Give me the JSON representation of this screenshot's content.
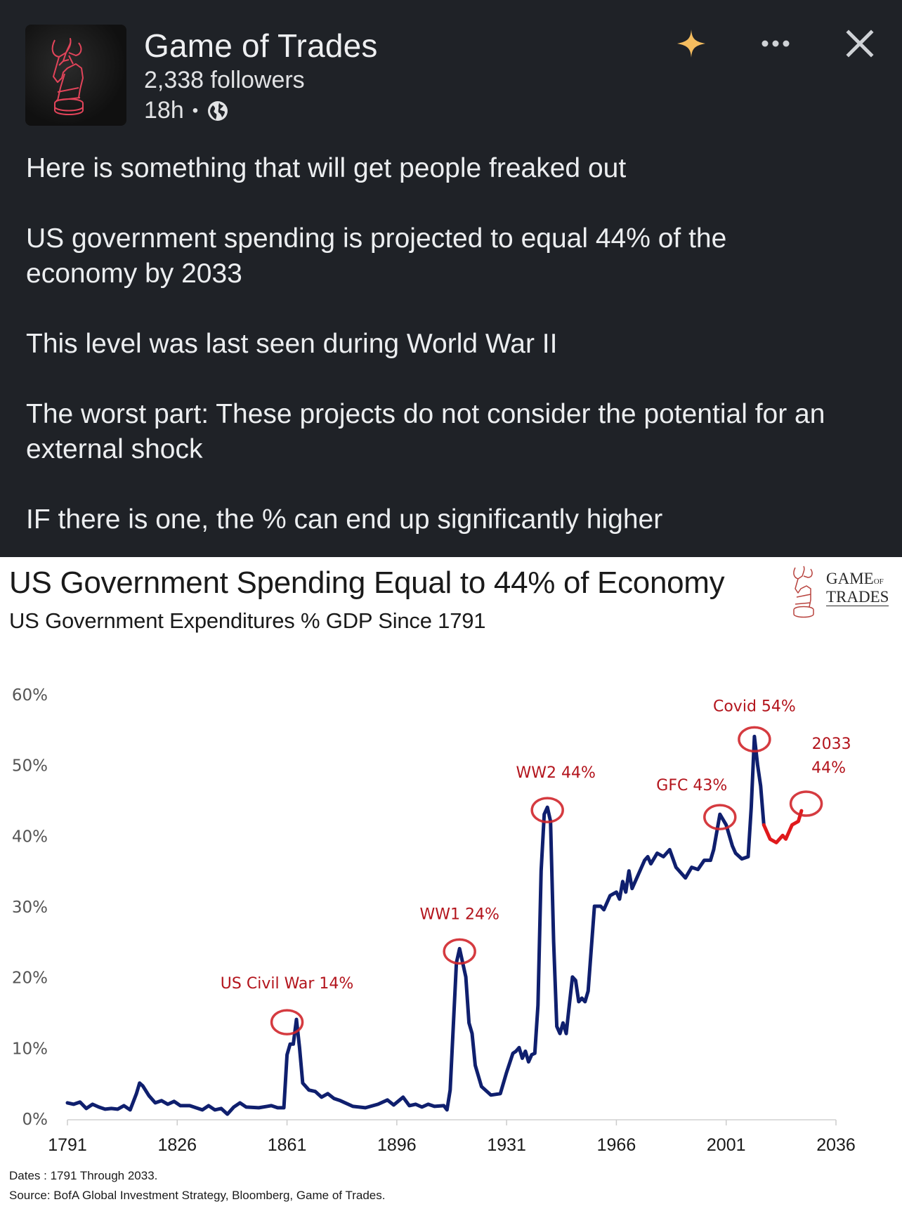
{
  "post": {
    "author": {
      "name": "Game of Trades",
      "followers": "2,338 followers",
      "time": "18h",
      "separator": "•",
      "visibility_icon": "globe-icon"
    },
    "header_actions": {
      "sparkle_icon": "sparkle-icon",
      "more_icon": "more-horizontal-icon",
      "close_icon": "close-icon",
      "sparkle_color": "#f5bd5f"
    },
    "body": [
      "Here is something that will get people freaked out",
      "US government spending is projected to equal 44% of the economy by 2033",
      "This level was last seen during World War II",
      "The worst part: These projects do not consider the potential for an external shock",
      "IF there is one, the % can end up significantly higher"
    ]
  },
  "chart_card": {
    "title": "US Government Spending Equal to 44% of Economy",
    "subtitle": "US Government Expenditures % GDP Since 1791",
    "brand": {
      "line1": "GAME",
      "line1_small": "OF",
      "line2": "TRADES"
    },
    "footnotes": [
      "Dates : 1791 Through 2033.",
      "Source: BofA Global Investment Strategy, Bloomberg, Game of Trades."
    ]
  },
  "chart_data": {
    "type": "line",
    "title": "US Government Spending Equal to 44% of Economy",
    "subtitle": "US Government Expenditures % GDP Since 1791",
    "xlabel": "",
    "ylabel": "",
    "xlim": [
      1791,
      2036
    ],
    "ylim": [
      0,
      60
    ],
    "x_ticks": [
      "1791",
      "1826",
      "1861",
      "1896",
      "1931",
      "1966",
      "2001",
      "2036"
    ],
    "y_ticks": [
      "0%",
      "10%",
      "20%",
      "30%",
      "40%",
      "50%",
      "60%"
    ],
    "grid": false,
    "legend": null,
    "colors": {
      "historical": "#0f1f6e",
      "projection": "#e0191c",
      "annotation": "#b3141c"
    },
    "series": [
      {
        "name": "Historical",
        "points": [
          [
            1791,
            2.2
          ],
          [
            1793,
            2.0
          ],
          [
            1795,
            2.3
          ],
          [
            1797,
            1.4
          ],
          [
            1799,
            2.0
          ],
          [
            1801,
            1.6
          ],
          [
            1803,
            1.3
          ],
          [
            1805,
            1.4
          ],
          [
            1807,
            1.3
          ],
          [
            1809,
            1.8
          ],
          [
            1811,
            1.2
          ],
          [
            1813,
            3.5
          ],
          [
            1814,
            5.0
          ],
          [
            1815,
            4.6
          ],
          [
            1817,
            3.2
          ],
          [
            1819,
            2.2
          ],
          [
            1821,
            2.5
          ],
          [
            1823,
            2.0
          ],
          [
            1825,
            2.4
          ],
          [
            1827,
            1.8
          ],
          [
            1830,
            1.8
          ],
          [
            1834,
            1.2
          ],
          [
            1836,
            1.8
          ],
          [
            1838,
            1.2
          ],
          [
            1840,
            1.4
          ],
          [
            1842,
            0.6
          ],
          [
            1844,
            1.6
          ],
          [
            1846,
            2.2
          ],
          [
            1848,
            1.6
          ],
          [
            1852,
            1.5
          ],
          [
            1856,
            1.8
          ],
          [
            1858,
            1.5
          ],
          [
            1860,
            1.5
          ],
          [
            1861,
            9.0
          ],
          [
            1862,
            10.5
          ],
          [
            1863,
            10.5
          ],
          [
            1864,
            14.0
          ],
          [
            1865,
            10.0
          ],
          [
            1866,
            5.0
          ],
          [
            1868,
            4.0
          ],
          [
            1870,
            3.8
          ],
          [
            1872,
            3.0
          ],
          [
            1874,
            3.5
          ],
          [
            1876,
            2.8
          ],
          [
            1878,
            2.5
          ],
          [
            1882,
            1.7
          ],
          [
            1886,
            1.5
          ],
          [
            1890,
            2.0
          ],
          [
            1893,
            2.6
          ],
          [
            1895,
            1.9
          ],
          [
            1898,
            3.0
          ],
          [
            1900,
            1.8
          ],
          [
            1902,
            2.0
          ],
          [
            1904,
            1.6
          ],
          [
            1906,
            2.0
          ],
          [
            1908,
            1.7
          ],
          [
            1911,
            1.8
          ],
          [
            1912,
            1.2
          ],
          [
            1913,
            4.0
          ],
          [
            1915,
            22.0
          ],
          [
            1916,
            24.0
          ],
          [
            1918,
            20.0
          ],
          [
            1919,
            13.5
          ],
          [
            1920,
            12.0
          ],
          [
            1921,
            7.5
          ],
          [
            1923,
            4.5
          ],
          [
            1926,
            3.3
          ],
          [
            1929,
            3.5
          ],
          [
            1931,
            6.5
          ],
          [
            1933,
            9.2
          ],
          [
            1934,
            9.5
          ],
          [
            1935,
            10.0
          ],
          [
            1936,
            8.5
          ],
          [
            1937,
            9.5
          ],
          [
            1938,
            8.0
          ],
          [
            1939,
            9.0
          ],
          [
            1940,
            9.2
          ],
          [
            1941,
            16.0
          ],
          [
            1942,
            35.0
          ],
          [
            1943,
            43.0
          ],
          [
            1944,
            44.0
          ],
          [
            1945,
            42.0
          ],
          [
            1946,
            25.0
          ],
          [
            1947,
            13.0
          ],
          [
            1948,
            12.0
          ],
          [
            1949,
            13.5
          ],
          [
            1950,
            12.0
          ],
          [
            1951,
            16.0
          ],
          [
            1952,
            20.0
          ],
          [
            1953,
            19.5
          ],
          [
            1954,
            16.5
          ],
          [
            1955,
            17.0
          ],
          [
            1956,
            16.5
          ],
          [
            1957,
            18.0
          ],
          [
            1959,
            30.0
          ],
          [
            1961,
            30.0
          ],
          [
            1962,
            29.5
          ],
          [
            1964,
            31.5
          ],
          [
            1966,
            32.0
          ],
          [
            1967,
            31.0
          ],
          [
            1968,
            33.5
          ],
          [
            1969,
            32.0
          ],
          [
            1970,
            35.0
          ],
          [
            1971,
            32.5
          ],
          [
            1973,
            34.5
          ],
          [
            1975,
            36.5
          ],
          [
            1976,
            37.0
          ],
          [
            1977,
            36.0
          ],
          [
            1979,
            37.5
          ],
          [
            1981,
            37.0
          ],
          [
            1983,
            38.0
          ],
          [
            1985,
            35.5
          ],
          [
            1988,
            34.0
          ],
          [
            1990,
            35.5
          ],
          [
            1992,
            35.2
          ],
          [
            1994,
            36.5
          ],
          [
            1996,
            36.5
          ],
          [
            1997,
            38.0
          ],
          [
            1999,
            43.0
          ],
          [
            2001,
            41.5
          ],
          [
            2003,
            38.5
          ],
          [
            2004,
            37.5
          ],
          [
            2006,
            36.7
          ],
          [
            2008,
            37.0
          ],
          [
            2009,
            44.0
          ],
          [
            2010,
            54.0
          ],
          [
            2011,
            50.0
          ],
          [
            2012,
            47.0
          ],
          [
            2013,
            41.5
          ]
        ]
      },
      {
        "name": "Projection",
        "points": [
          [
            2013,
            41.5
          ],
          [
            2015,
            39.5
          ],
          [
            2017,
            39.0
          ],
          [
            2019,
            40.0
          ],
          [
            2020,
            39.5
          ],
          [
            2022,
            41.5
          ],
          [
            2024,
            42.0
          ],
          [
            2025,
            43.5
          ]
        ]
      }
    ],
    "annotations": [
      {
        "label": "US Civil War 14%",
        "x": 1861,
        "y": 14
      },
      {
        "label": "WW1 24%",
        "x": 1916,
        "y": 24
      },
      {
        "label": "WW2 44%",
        "x": 1944,
        "y": 44
      },
      {
        "label": "GFC 43%",
        "x": 1999,
        "y": 43
      },
      {
        "label": "Covid 54%",
        "x": 2010,
        "y": 54
      },
      {
        "label": "2033 44%",
        "x": 2033,
        "y": 44
      }
    ]
  }
}
